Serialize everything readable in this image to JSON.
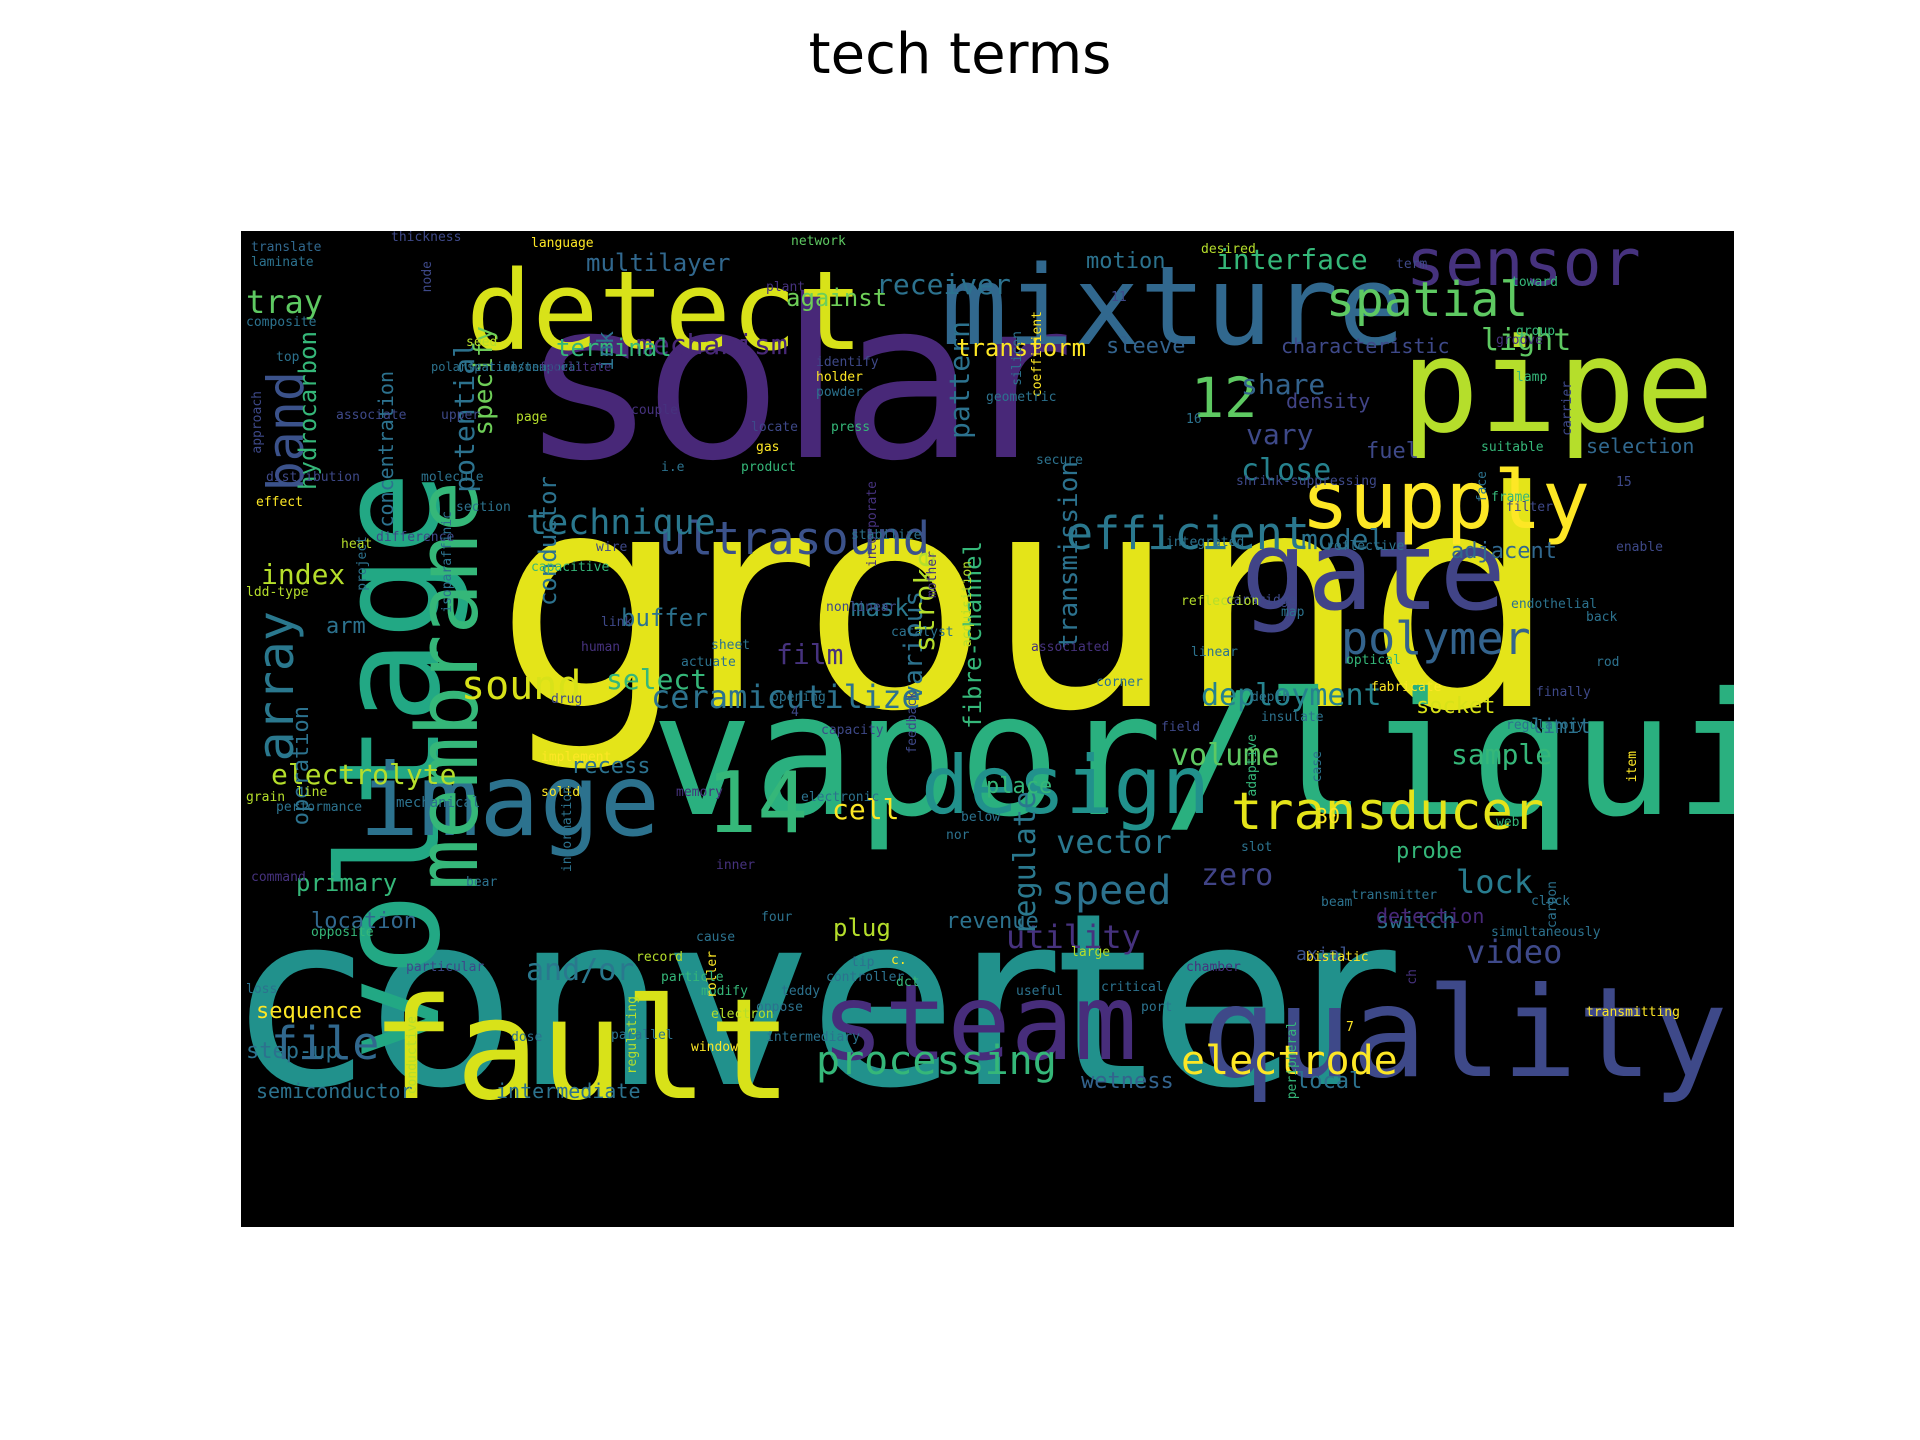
{
  "title": "tech terms",
  "palette": [
    "#fde725",
    "#b5de2b",
    "#6ece58",
    "#35b779",
    "#1f9e89",
    "#26828e",
    "#31688e",
    "#3e4989",
    "#482878",
    "#440154"
  ],
  "words": [
    {
      "t": "ground",
      "c": "#e4e419"
    },
    {
      "t": "solar",
      "c": "#482878"
    },
    {
      "t": "converter",
      "c": "#21918c"
    },
    {
      "t": "vapor/liquid",
      "c": "#2ab07f"
    },
    {
      "t": "voltage",
      "c": "#22a884"
    },
    {
      "t": "mixture",
      "c": "#31688e"
    },
    {
      "t": "detect",
      "c": "#d8e219"
    },
    {
      "t": "pipe",
      "c": "#b5de2b"
    },
    {
      "t": "fault",
      "c": "#d8e219"
    },
    {
      "t": "quality",
      "c": "#3e4989"
    },
    {
      "t": "steam",
      "c": "#472d7b"
    },
    {
      "t": "gate",
      "c": "#414487"
    },
    {
      "t": "image",
      "c": "#2c728e"
    },
    {
      "t": "membrane",
      "c": "#35b779"
    },
    {
      "t": "supply",
      "c": "#fde725"
    },
    {
      "t": "sensor",
      "c": "#46327e"
    },
    {
      "t": "design",
      "c": "#21918c"
    },
    {
      "t": "14",
      "c": "#35b779"
    },
    {
      "t": "transducer",
      "c": "#e5e419"
    },
    {
      "t": "spatial",
      "c": "#5ec962"
    },
    {
      "t": "polymer",
      "c": "#33638d"
    },
    {
      "t": "efficient",
      "c": "#2a788e"
    },
    {
      "t": "ultrasound",
      "c": "#3b528b"
    },
    {
      "t": "12",
      "c": "#5ec962"
    },
    {
      "t": "processing",
      "c": "#35b779"
    },
    {
      "t": "electrode",
      "c": "#fde725"
    },
    {
      "t": "band",
      "c": "#3b528b"
    },
    {
      "t": "array",
      "c": "#2a788e"
    },
    {
      "t": "ceramicutilize",
      "c": "#2c728e"
    },
    {
      "t": "deployment",
      "c": "#26828e"
    },
    {
      "t": "sound",
      "c": "#d8e219"
    },
    {
      "t": "technique",
      "c": "#2a788e"
    },
    {
      "t": "file",
      "c": "#31688e"
    },
    {
      "t": "and/or",
      "c": "#2a788e"
    },
    {
      "t": "speed",
      "c": "#2c728e"
    },
    {
      "t": "vector",
      "c": "#2a788e"
    },
    {
      "t": "utility",
      "c": "#46327e"
    },
    {
      "t": "zero",
      "c": "#414487"
    },
    {
      "t": "lock",
      "c": "#287c8e"
    },
    {
      "t": "video",
      "c": "#3e4989"
    },
    {
      "t": "electrolyte",
      "c": "#b5de2b"
    },
    {
      "t": "volume",
      "c": "#5ec962"
    },
    {
      "t": "sample",
      "c": "#35b779"
    },
    {
      "t": "regulate",
      "c": "#2a788e"
    },
    {
      "t": "close",
      "c": "#26828e"
    },
    {
      "t": "vary",
      "c": "#3e4989"
    },
    {
      "t": "share",
      "c": "#33638d"
    },
    {
      "t": "model",
      "c": "#2c728e"
    },
    {
      "t": "adjacent",
      "c": "#31688e"
    },
    {
      "t": "light",
      "c": "#5ec962"
    },
    {
      "t": "tray",
      "c": "#5ec962"
    },
    {
      "t": "index",
      "c": "#b5de2b"
    },
    {
      "t": "potential",
      "c": "#2c728e"
    },
    {
      "t": "specify",
      "c": "#6ece58"
    },
    {
      "t": "mechanism",
      "c": "#482878"
    },
    {
      "t": "pattern",
      "c": "#2c728e"
    },
    {
      "t": "transmission",
      "c": "#2c728e"
    },
    {
      "t": "fibre-channel",
      "c": "#35b779"
    },
    {
      "t": "various",
      "c": "#2c728e"
    },
    {
      "t": "stroke",
      "c": "#b5de2b"
    },
    {
      "t": "receiver",
      "c": "#2c728e"
    },
    {
      "t": "interface",
      "c": "#35b779"
    },
    {
      "t": "multilayer",
      "c": "#31688e"
    },
    {
      "t": "motion",
      "c": "#2c728e"
    },
    {
      "t": "against",
      "c": "#6ece58"
    },
    {
      "t": "terminal",
      "c": "#35b779"
    },
    {
      "t": "transform",
      "c": "#fde725"
    },
    {
      "t": "sleeve",
      "c": "#33638d"
    },
    {
      "t": "characteristic",
      "c": "#3e4989"
    },
    {
      "t": "density",
      "c": "#414487"
    },
    {
      "t": "fuel",
      "c": "#3e4989"
    },
    {
      "t": "selection",
      "c": "#31688e"
    },
    {
      "t": "concentration",
      "c": "#2c728e"
    },
    {
      "t": "hydrocarbon",
      "c": "#35b779"
    },
    {
      "t": "ink",
      "c": "#2c728e"
    },
    {
      "t": "conductor",
      "c": "#2c728e"
    },
    {
      "t": "buffer",
      "c": "#2c728e"
    },
    {
      "t": "mask",
      "c": "#2a788e"
    },
    {
      "t": "film",
      "c": "#46327e"
    },
    {
      "t": "select",
      "c": "#35b779"
    },
    {
      "t": "arm",
      "c": "#2c728e"
    },
    {
      "t": "operation",
      "c": "#2c728e"
    },
    {
      "t": "recess",
      "c": "#2c728e"
    },
    {
      "t": "cell",
      "c": "#fde725"
    },
    {
      "t": "place",
      "c": "#35b779"
    },
    {
      "t": "socket",
      "c": "#d8e219"
    },
    {
      "t": "limit",
      "c": "#2c728e"
    },
    {
      "t": "primary",
      "c": "#35b779"
    },
    {
      "t": "location",
      "c": "#31688e"
    },
    {
      "t": "sequence",
      "c": "#fde725"
    },
    {
      "t": "step-up",
      "c": "#2c728e"
    },
    {
      "t": "semiconductor",
      "c": "#2c728e"
    },
    {
      "t": "intermediate",
      "c": "#2c728e"
    },
    {
      "t": "wetness",
      "c": "#33638d"
    },
    {
      "t": "local",
      "c": "#2c728e"
    },
    {
      "t": "plug",
      "c": "#b5de2b"
    },
    {
      "t": "revenue",
      "c": "#2c728e"
    },
    {
      "t": "switch",
      "c": "#2c728e"
    },
    {
      "t": "probe",
      "c": "#35b779"
    },
    {
      "t": "detection",
      "c": "#482878"
    },
    {
      "t": "axial",
      "c": "#3b528b"
    },
    {
      "t": "30",
      "c": "#fde725"
    },
    {
      "t": "mechanical",
      "c": "#2c728e"
    },
    {
      "t": "translate",
      "c": "#31688e"
    },
    {
      "t": "laminate",
      "c": "#2c728e"
    },
    {
      "t": "thickness",
      "c": "#3e4989"
    },
    {
      "t": "language",
      "c": "#fde725"
    },
    {
      "t": "network",
      "c": "#5ec962"
    },
    {
      "t": "desired",
      "c": "#b5de2b"
    },
    {
      "t": "term",
      "c": "#3e4989"
    },
    {
      "t": "toward",
      "c": "#35b779"
    },
    {
      "t": "composite",
      "c": "#2c728e"
    },
    {
      "t": "plant",
      "c": "#46327e"
    },
    {
      "t": "node",
      "c": "#3e4989"
    },
    {
      "t": "11",
      "c": "#3e4989"
    },
    {
      "t": "group",
      "c": "#35b779"
    },
    {
      "t": "groove",
      "c": "#46327e"
    },
    {
      "t": "top",
      "c": "#2c728e"
    },
    {
      "t": "seed",
      "c": "#b5de2b"
    },
    {
      "t": "silicon",
      "c": "#2c728e"
    },
    {
      "t": "coefficient",
      "c": "#fde725"
    },
    {
      "t": "identify",
      "c": "#3e4989"
    },
    {
      "t": "holder",
      "c": "#fde725"
    },
    {
      "t": "powder",
      "c": "#2c728e"
    },
    {
      "t": "geometric",
      "c": "#2c728e"
    },
    {
      "t": "lamp",
      "c": "#35b779"
    },
    {
      "t": "carrier",
      "c": "#3e4989"
    },
    {
      "t": "associate",
      "c": "#3e4989"
    },
    {
      "t": "upper",
      "c": "#3e4989"
    },
    {
      "t": "couple",
      "c": "#46327e"
    },
    {
      "t": "16",
      "c": "#2c728e"
    },
    {
      "t": "approach",
      "c": "#3e4989"
    },
    {
      "t": "locate",
      "c": "#3e4989"
    },
    {
      "t": "press",
      "c": "#35b779"
    },
    {
      "t": "page",
      "c": "#b5de2b"
    },
    {
      "t": "gas",
      "c": "#fde725"
    },
    {
      "t": "product",
      "c": "#35b779"
    },
    {
      "t": "secure",
      "c": "#2c728e"
    },
    {
      "t": "suitable",
      "c": "#35b779"
    },
    {
      "t": "distribution",
      "c": "#3e4989"
    },
    {
      "t": "molecule",
      "c": "#2c728e"
    },
    {
      "t": "i.e",
      "c": "#2c728e"
    },
    {
      "t": "shrink-suppressing",
      "c": "#3e4989"
    },
    {
      "t": "frame",
      "c": "#35b779"
    },
    {
      "t": "effect",
      "c": "#fde725"
    },
    {
      "t": "section",
      "c": "#2c728e"
    },
    {
      "t": "incorporate",
      "c": "#46327e"
    },
    {
      "t": "filter",
      "c": "#3e4989"
    },
    {
      "t": "face",
      "c": "#2c728e"
    },
    {
      "t": "difference",
      "c": "#3e4989"
    },
    {
      "t": "heat",
      "c": "#b5de2b"
    },
    {
      "t": "integrated",
      "c": "#2c728e"
    },
    {
      "t": "15",
      "c": "#3e4989"
    },
    {
      "t": "isoparaffinic",
      "c": "#2c728e"
    },
    {
      "t": "wire",
      "c": "#3e4989"
    },
    {
      "t": "acquisition",
      "c": "#b5de2b"
    },
    {
      "t": "mother",
      "c": "#46327e"
    },
    {
      "t": "stabilize",
      "c": "#2c728e"
    },
    {
      "t": "reflective",
      "c": "#2c728e"
    },
    {
      "t": "capacitive",
      "c": "#35b779"
    },
    {
      "t": "enable",
      "c": "#3e4989"
    },
    {
      "t": "ldd-type",
      "c": "#b5de2b"
    },
    {
      "t": "project",
      "c": "#2c728e"
    },
    {
      "t": "nonlinear",
      "c": "#3e4989"
    },
    {
      "t": "cartridge",
      "c": "#3e4989"
    },
    {
      "t": "map",
      "c": "#2c728e"
    },
    {
      "t": "reflection",
      "c": "#b5de2b"
    },
    {
      "t": "back",
      "c": "#2c728e"
    },
    {
      "t": "sheet",
      "c": "#2c728e"
    },
    {
      "t": "human",
      "c": "#46327e"
    },
    {
      "t": "link",
      "c": "#3e4989"
    },
    {
      "t": "endothelial",
      "c": "#2c728e"
    },
    {
      "t": "catalyst",
      "c": "#2c728e"
    },
    {
      "t": "actuate",
      "c": "#2c728e"
    },
    {
      "t": "optical",
      "c": "#35b779"
    },
    {
      "t": "opening",
      "c": "#2c728e"
    },
    {
      "t": "rod",
      "c": "#2c728e"
    },
    {
      "t": "linear",
      "c": "#2c728e"
    },
    {
      "t": "corner",
      "c": "#2c728e"
    },
    {
      "t": "associated",
      "c": "#46327e"
    },
    {
      "t": "fabricate",
      "c": "#fde725"
    },
    {
      "t": "depth",
      "c": "#2c728e"
    },
    {
      "t": "drug",
      "c": "#3e4989"
    },
    {
      "t": "4",
      "c": "#3e4989"
    },
    {
      "t": "capacity",
      "c": "#3e4989"
    },
    {
      "t": "finally",
      "c": "#3e4989"
    },
    {
      "t": "insulate",
      "c": "#2c728e"
    },
    {
      "t": "field",
      "c": "#3e4989"
    },
    {
      "t": "regulatory",
      "c": "#2c728e"
    },
    {
      "t": "adaptive",
      "c": "#35b779"
    },
    {
      "t": "implement",
      "c": "#fde725"
    },
    {
      "t": "memory",
      "c": "#46327e"
    },
    {
      "t": "electronic",
      "c": "#2c728e"
    },
    {
      "t": "grain",
      "c": "#b5de2b"
    },
    {
      "t": "line",
      "c": "#b5de2b"
    },
    {
      "t": "solid",
      "c": "#fde725"
    },
    {
      "t": "performance",
      "c": "#2c728e"
    },
    {
      "t": "below",
      "c": "#2c728e"
    },
    {
      "t": "nor",
      "c": "#2c728e"
    },
    {
      "t": "feedback",
      "c": "#3e4989"
    },
    {
      "t": "information",
      "c": "#2c728e"
    },
    {
      "t": "slot",
      "c": "#2c728e"
    },
    {
      "t": "item",
      "c": "#fde725"
    },
    {
      "t": "inner",
      "c": "#46327e"
    },
    {
      "t": "case",
      "c": "#2c728e"
    },
    {
      "t": "command",
      "c": "#46327e"
    },
    {
      "t": "bear",
      "c": "#2c728e"
    },
    {
      "t": "beam",
      "c": "#2c728e"
    },
    {
      "t": "transmitter",
      "c": "#2c728e"
    },
    {
      "t": "carbon",
      "c": "#2c728e"
    },
    {
      "t": "clock",
      "c": "#2c728e"
    },
    {
      "t": "simultaneously",
      "c": "#2c728e"
    },
    {
      "t": "web",
      "c": "#35b779"
    },
    {
      "t": "four",
      "c": "#2c728e"
    },
    {
      "t": "regulating",
      "c": "#b5de2b"
    },
    {
      "t": "record",
      "c": "#b5de2b"
    },
    {
      "t": "tip",
      "c": "#2c728e"
    },
    {
      "t": "c.",
      "c": "#fde725"
    },
    {
      "t": "useful",
      "c": "#2c728e"
    },
    {
      "t": "ch",
      "c": "#46327e"
    },
    {
      "t": "teddy",
      "c": "#2c728e"
    },
    {
      "t": "opposite",
      "c": "#35b779"
    },
    {
      "t": "loss",
      "c": "#2c728e"
    },
    {
      "t": "particular",
      "c": "#3e4989"
    },
    {
      "t": "cause",
      "c": "#2c728e"
    },
    {
      "t": "bistatic",
      "c": "#fde725"
    },
    {
      "t": "large",
      "c": "#b5de2b"
    },
    {
      "t": "controller",
      "c": "#2c728e"
    },
    {
      "t": "chamber",
      "c": "#46327e"
    },
    {
      "t": "modify",
      "c": "#35b779"
    },
    {
      "t": "roller",
      "c": "#fde725"
    },
    {
      "t": "critical",
      "c": "#2c728e"
    },
    {
      "t": "conductive",
      "c": "#b5de2b"
    },
    {
      "t": "particle",
      "c": "#35b779"
    },
    {
      "t": "parallel",
      "c": "#2c728e"
    },
    {
      "t": "window",
      "c": "#fde725"
    },
    {
      "t": "oppose",
      "c": "#2c728e"
    },
    {
      "t": "port",
      "c": "#2c728e"
    },
    {
      "t": "electron",
      "c": "#b5de2b"
    },
    {
      "t": "7",
      "c": "#fde725"
    },
    {
      "t": "dose",
      "c": "#2c728e"
    },
    {
      "t": "dct",
      "c": "#35b779"
    },
    {
      "t": "intermediary",
      "c": "#2c728e"
    },
    {
      "t": "peripheral",
      "c": "#35b779"
    },
    {
      "t": "transmitting",
      "c": "#fde725"
    },
    {
      "t": "polarization",
      "c": "#2c728e"
    },
    {
      "t": "spatial/temporal",
      "c": "#2c728e"
    },
    {
      "t": "resonance",
      "c": "#2c728e"
    },
    {
      "t": "facilitate",
      "c": "#46327e"
    }
  ]
}
